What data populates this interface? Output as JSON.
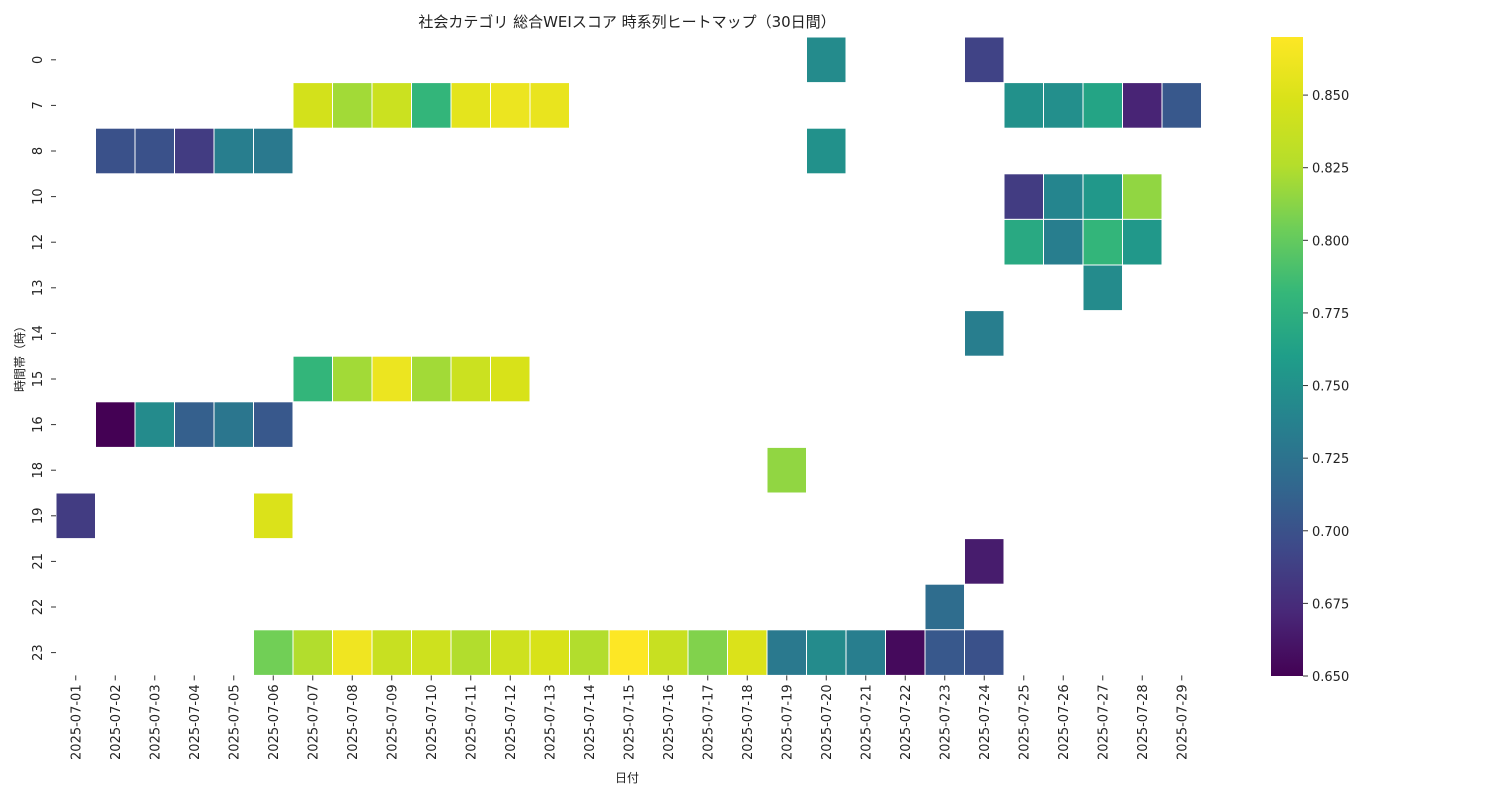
{
  "chart_data": {
    "type": "heatmap",
    "title": "社会カテゴリ 総合WEIスコア 時系列ヒートマップ（30日間）",
    "xlabel": "日付",
    "ylabel": "時間帯（時）",
    "x_categories": [
      "2025-07-01",
      "2025-07-02",
      "2025-07-03",
      "2025-07-04",
      "2025-07-05",
      "2025-07-06",
      "2025-07-07",
      "2025-07-08",
      "2025-07-09",
      "2025-07-10",
      "2025-07-11",
      "2025-07-12",
      "2025-07-13",
      "2025-07-14",
      "2025-07-15",
      "2025-07-16",
      "2025-07-17",
      "2025-07-18",
      "2025-07-19",
      "2025-07-20",
      "2025-07-21",
      "2025-07-22",
      "2025-07-23",
      "2025-07-24",
      "2025-07-25",
      "2025-07-26",
      "2025-07-27",
      "2025-07-28",
      "2025-07-29"
    ],
    "y_categories": [
      "0",
      "7",
      "8",
      "10",
      "12",
      "13",
      "14",
      "15",
      "16",
      "18",
      "19",
      "21",
      "22",
      "23"
    ],
    "colormap": "viridis",
    "vmin": 0.65,
    "vmax": 0.87,
    "colorbar_ticks": [
      "0.650",
      "0.675",
      "0.700",
      "0.725",
      "0.750",
      "0.775",
      "0.800",
      "0.825",
      "0.850"
    ],
    "cells": [
      {
        "x": "2025-07-20",
        "y": "0",
        "value": 0.745
      },
      {
        "x": "2025-07-24",
        "y": "0",
        "value": 0.69
      },
      {
        "x": "2025-07-07",
        "y": "7",
        "value": 0.845
      },
      {
        "x": "2025-07-08",
        "y": "7",
        "value": 0.82
      },
      {
        "x": "2025-07-09",
        "y": "7",
        "value": 0.84
      },
      {
        "x": "2025-07-10",
        "y": "7",
        "value": 0.78
      },
      {
        "x": "2025-07-11",
        "y": "7",
        "value": 0.855
      },
      {
        "x": "2025-07-12",
        "y": "7",
        "value": 0.86
      },
      {
        "x": "2025-07-13",
        "y": "7",
        "value": 0.858
      },
      {
        "x": "2025-07-25",
        "y": "7",
        "value": 0.75
      },
      {
        "x": "2025-07-26",
        "y": "7",
        "value": 0.748
      },
      {
        "x": "2025-07-27",
        "y": "7",
        "value": 0.765
      },
      {
        "x": "2025-07-28",
        "y": "7",
        "value": 0.67
      },
      {
        "x": "2025-07-29",
        "y": "7",
        "value": 0.705
      },
      {
        "x": "2025-07-02",
        "y": "8",
        "value": 0.7
      },
      {
        "x": "2025-07-03",
        "y": "8",
        "value": 0.7
      },
      {
        "x": "2025-07-04",
        "y": "8",
        "value": 0.685
      },
      {
        "x": "2025-07-05",
        "y": "8",
        "value": 0.735
      },
      {
        "x": "2025-07-06",
        "y": "8",
        "value": 0.73
      },
      {
        "x": "2025-07-20",
        "y": "8",
        "value": 0.75
      },
      {
        "x": "2025-07-25",
        "y": "10",
        "value": 0.685
      },
      {
        "x": "2025-07-26",
        "y": "10",
        "value": 0.74
      },
      {
        "x": "2025-07-27",
        "y": "10",
        "value": 0.755
      },
      {
        "x": "2025-07-28",
        "y": "10",
        "value": 0.815
      },
      {
        "x": "2025-07-25",
        "y": "12",
        "value": 0.77
      },
      {
        "x": "2025-07-26",
        "y": "12",
        "value": 0.735
      },
      {
        "x": "2025-07-27",
        "y": "12",
        "value": 0.78
      },
      {
        "x": "2025-07-28",
        "y": "12",
        "value": 0.755
      },
      {
        "x": "2025-07-27",
        "y": "13",
        "value": 0.745
      },
      {
        "x": "2025-07-24",
        "y": "14",
        "value": 0.735
      },
      {
        "x": "2025-07-07",
        "y": "15",
        "value": 0.78
      },
      {
        "x": "2025-07-08",
        "y": "15",
        "value": 0.82
      },
      {
        "x": "2025-07-09",
        "y": "15",
        "value": 0.86
      },
      {
        "x": "2025-07-10",
        "y": "15",
        "value": 0.82
      },
      {
        "x": "2025-07-11",
        "y": "15",
        "value": 0.84
      },
      {
        "x": "2025-07-12",
        "y": "15",
        "value": 0.848
      },
      {
        "x": "2025-07-02",
        "y": "16",
        "value": 0.65
      },
      {
        "x": "2025-07-03",
        "y": "16",
        "value": 0.745
      },
      {
        "x": "2025-07-04",
        "y": "16",
        "value": 0.71
      },
      {
        "x": "2025-07-05",
        "y": "16",
        "value": 0.728
      },
      {
        "x": "2025-07-06",
        "y": "16",
        "value": 0.705
      },
      {
        "x": "2025-07-19",
        "y": "18",
        "value": 0.815
      },
      {
        "x": "2025-07-01",
        "y": "19",
        "value": 0.685
      },
      {
        "x": "2025-07-06",
        "y": "19",
        "value": 0.85
      },
      {
        "x": "2025-07-24",
        "y": "21",
        "value": 0.665
      },
      {
        "x": "2025-07-23",
        "y": "22",
        "value": 0.72
      },
      {
        "x": "2025-07-06",
        "y": "23",
        "value": 0.805
      },
      {
        "x": "2025-07-07",
        "y": "23",
        "value": 0.825
      },
      {
        "x": "2025-07-08",
        "y": "23",
        "value": 0.862
      },
      {
        "x": "2025-07-09",
        "y": "23",
        "value": 0.838
      },
      {
        "x": "2025-07-10",
        "y": "23",
        "value": 0.842
      },
      {
        "x": "2025-07-11",
        "y": "23",
        "value": 0.825
      },
      {
        "x": "2025-07-12",
        "y": "23",
        "value": 0.842
      },
      {
        "x": "2025-07-13",
        "y": "23",
        "value": 0.848
      },
      {
        "x": "2025-07-14",
        "y": "23",
        "value": 0.825
      },
      {
        "x": "2025-07-15",
        "y": "23",
        "value": 0.87
      },
      {
        "x": "2025-07-16",
        "y": "23",
        "value": 0.838
      },
      {
        "x": "2025-07-17",
        "y": "23",
        "value": 0.81
      },
      {
        "x": "2025-07-18",
        "y": "23",
        "value": 0.85
      },
      {
        "x": "2025-07-19",
        "y": "23",
        "value": 0.73
      },
      {
        "x": "2025-07-20",
        "y": "23",
        "value": 0.745
      },
      {
        "x": "2025-07-21",
        "y": "23",
        "value": 0.735
      },
      {
        "x": "2025-07-22",
        "y": "23",
        "value": 0.655
      },
      {
        "x": "2025-07-23",
        "y": "23",
        "value": 0.705
      },
      {
        "x": "2025-07-24",
        "y": "23",
        "value": 0.7
      }
    ]
  }
}
